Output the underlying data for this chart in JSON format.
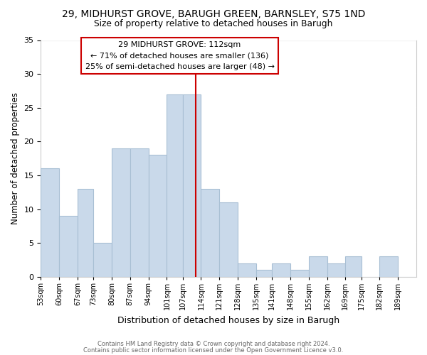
{
  "title": "29, MIDHURST GROVE, BARUGH GREEN, BARNSLEY, S75 1ND",
  "subtitle": "Size of property relative to detached houses in Barugh",
  "xlabel": "Distribution of detached houses by size in Barugh",
  "ylabel": "Number of detached properties",
  "bar_color": "#c9d9ea",
  "bar_edgecolor": "#a8bfd4",
  "bins": [
    53,
    60,
    67,
    73,
    80,
    87,
    94,
    101,
    107,
    114,
    121,
    128,
    135,
    141,
    148,
    155,
    162,
    169,
    175,
    182,
    189,
    196
  ],
  "counts": [
    16,
    9,
    13,
    5,
    19,
    19,
    18,
    27,
    27,
    13,
    11,
    2,
    1,
    2,
    1,
    3,
    2,
    3,
    0,
    3,
    0
  ],
  "tick_labels": [
    "53sqm",
    "60sqm",
    "67sqm",
    "73sqm",
    "80sqm",
    "87sqm",
    "94sqm",
    "101sqm",
    "107sqm",
    "114sqm",
    "121sqm",
    "128sqm",
    "135sqm",
    "141sqm",
    "148sqm",
    "155sqm",
    "162sqm",
    "169sqm",
    "175sqm",
    "182sqm",
    "189sqm"
  ],
  "vline_x": 112,
  "vline_color": "#cc0000",
  "annotation_title": "29 MIDHURST GROVE: 112sqm",
  "annotation_line1": "← 71% of detached houses are smaller (136)",
  "annotation_line2": "25% of semi-detached houses are larger (48) →",
  "ylim": [
    0,
    35
  ],
  "yticks": [
    0,
    5,
    10,
    15,
    20,
    25,
    30,
    35
  ],
  "footer1": "Contains HM Land Registry data © Crown copyright and database right 2024.",
  "footer2": "Contains public sector information licensed under the Open Government Licence v3.0.",
  "fig_width": 6.0,
  "fig_height": 5.0,
  "background_color": "#ffffff"
}
